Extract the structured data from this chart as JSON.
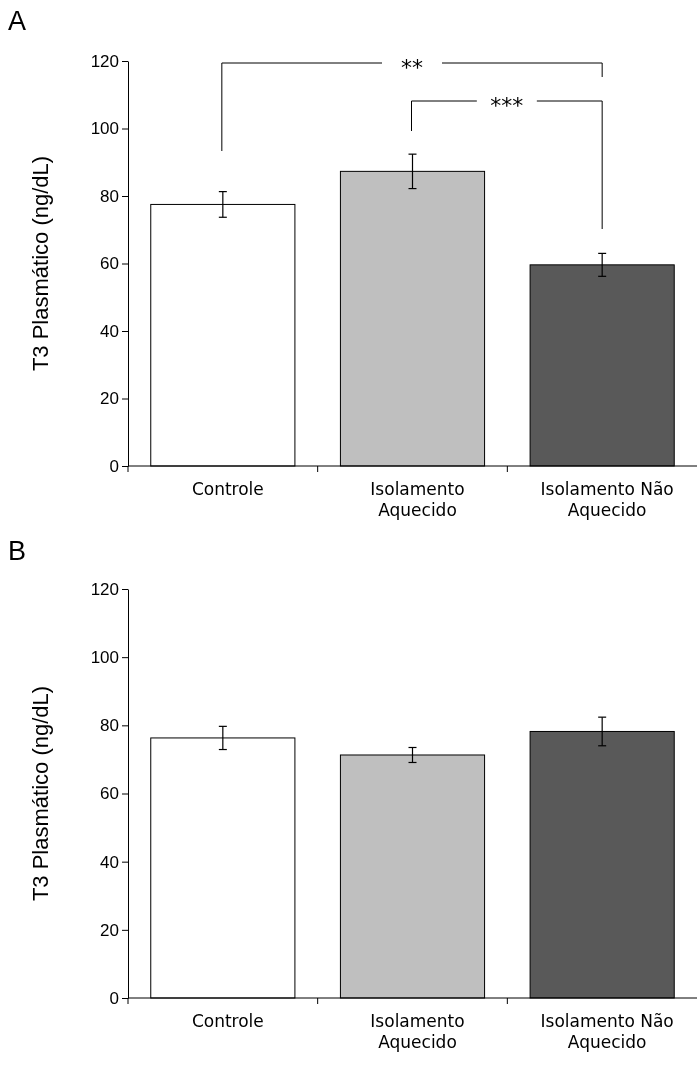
{
  "chart_data": [
    {
      "type": "bar",
      "title": "A",
      "ylabel": "T3 Plasmático (ng/dL)",
      "categories": [
        "Controle",
        "Isolamento Aquecido",
        "Isolamento Não Aquecido"
      ],
      "values": [
        77.5,
        87.3,
        59.6
      ],
      "errors": [
        3.8,
        5.1,
        3.4
      ],
      "colors": [
        "#ffffff",
        "#bfbfbf",
        "#595959"
      ],
      "ylim": [
        0,
        120
      ],
      "yticks": [
        0,
        20,
        40,
        60,
        80,
        100,
        120
      ],
      "grid": false,
      "annotations": [
        "**",
        "***"
      ]
    },
    {
      "type": "bar",
      "title": "B",
      "ylabel": "T3 Plasmático (ng/dL)",
      "categories": [
        "Controle",
        "Isolamento Aquecido",
        "Isolamento Não Aquecido"
      ],
      "values": [
        76.3,
        71.3,
        78.2
      ],
      "errors": [
        3.4,
        2.2,
        4.2
      ],
      "colors": [
        "#ffffff",
        "#bfbfbf",
        "#595959"
      ],
      "ylim": [
        0,
        120
      ],
      "yticks": [
        0,
        20,
        40,
        60,
        80,
        100,
        120
      ],
      "grid": false
    }
  ]
}
